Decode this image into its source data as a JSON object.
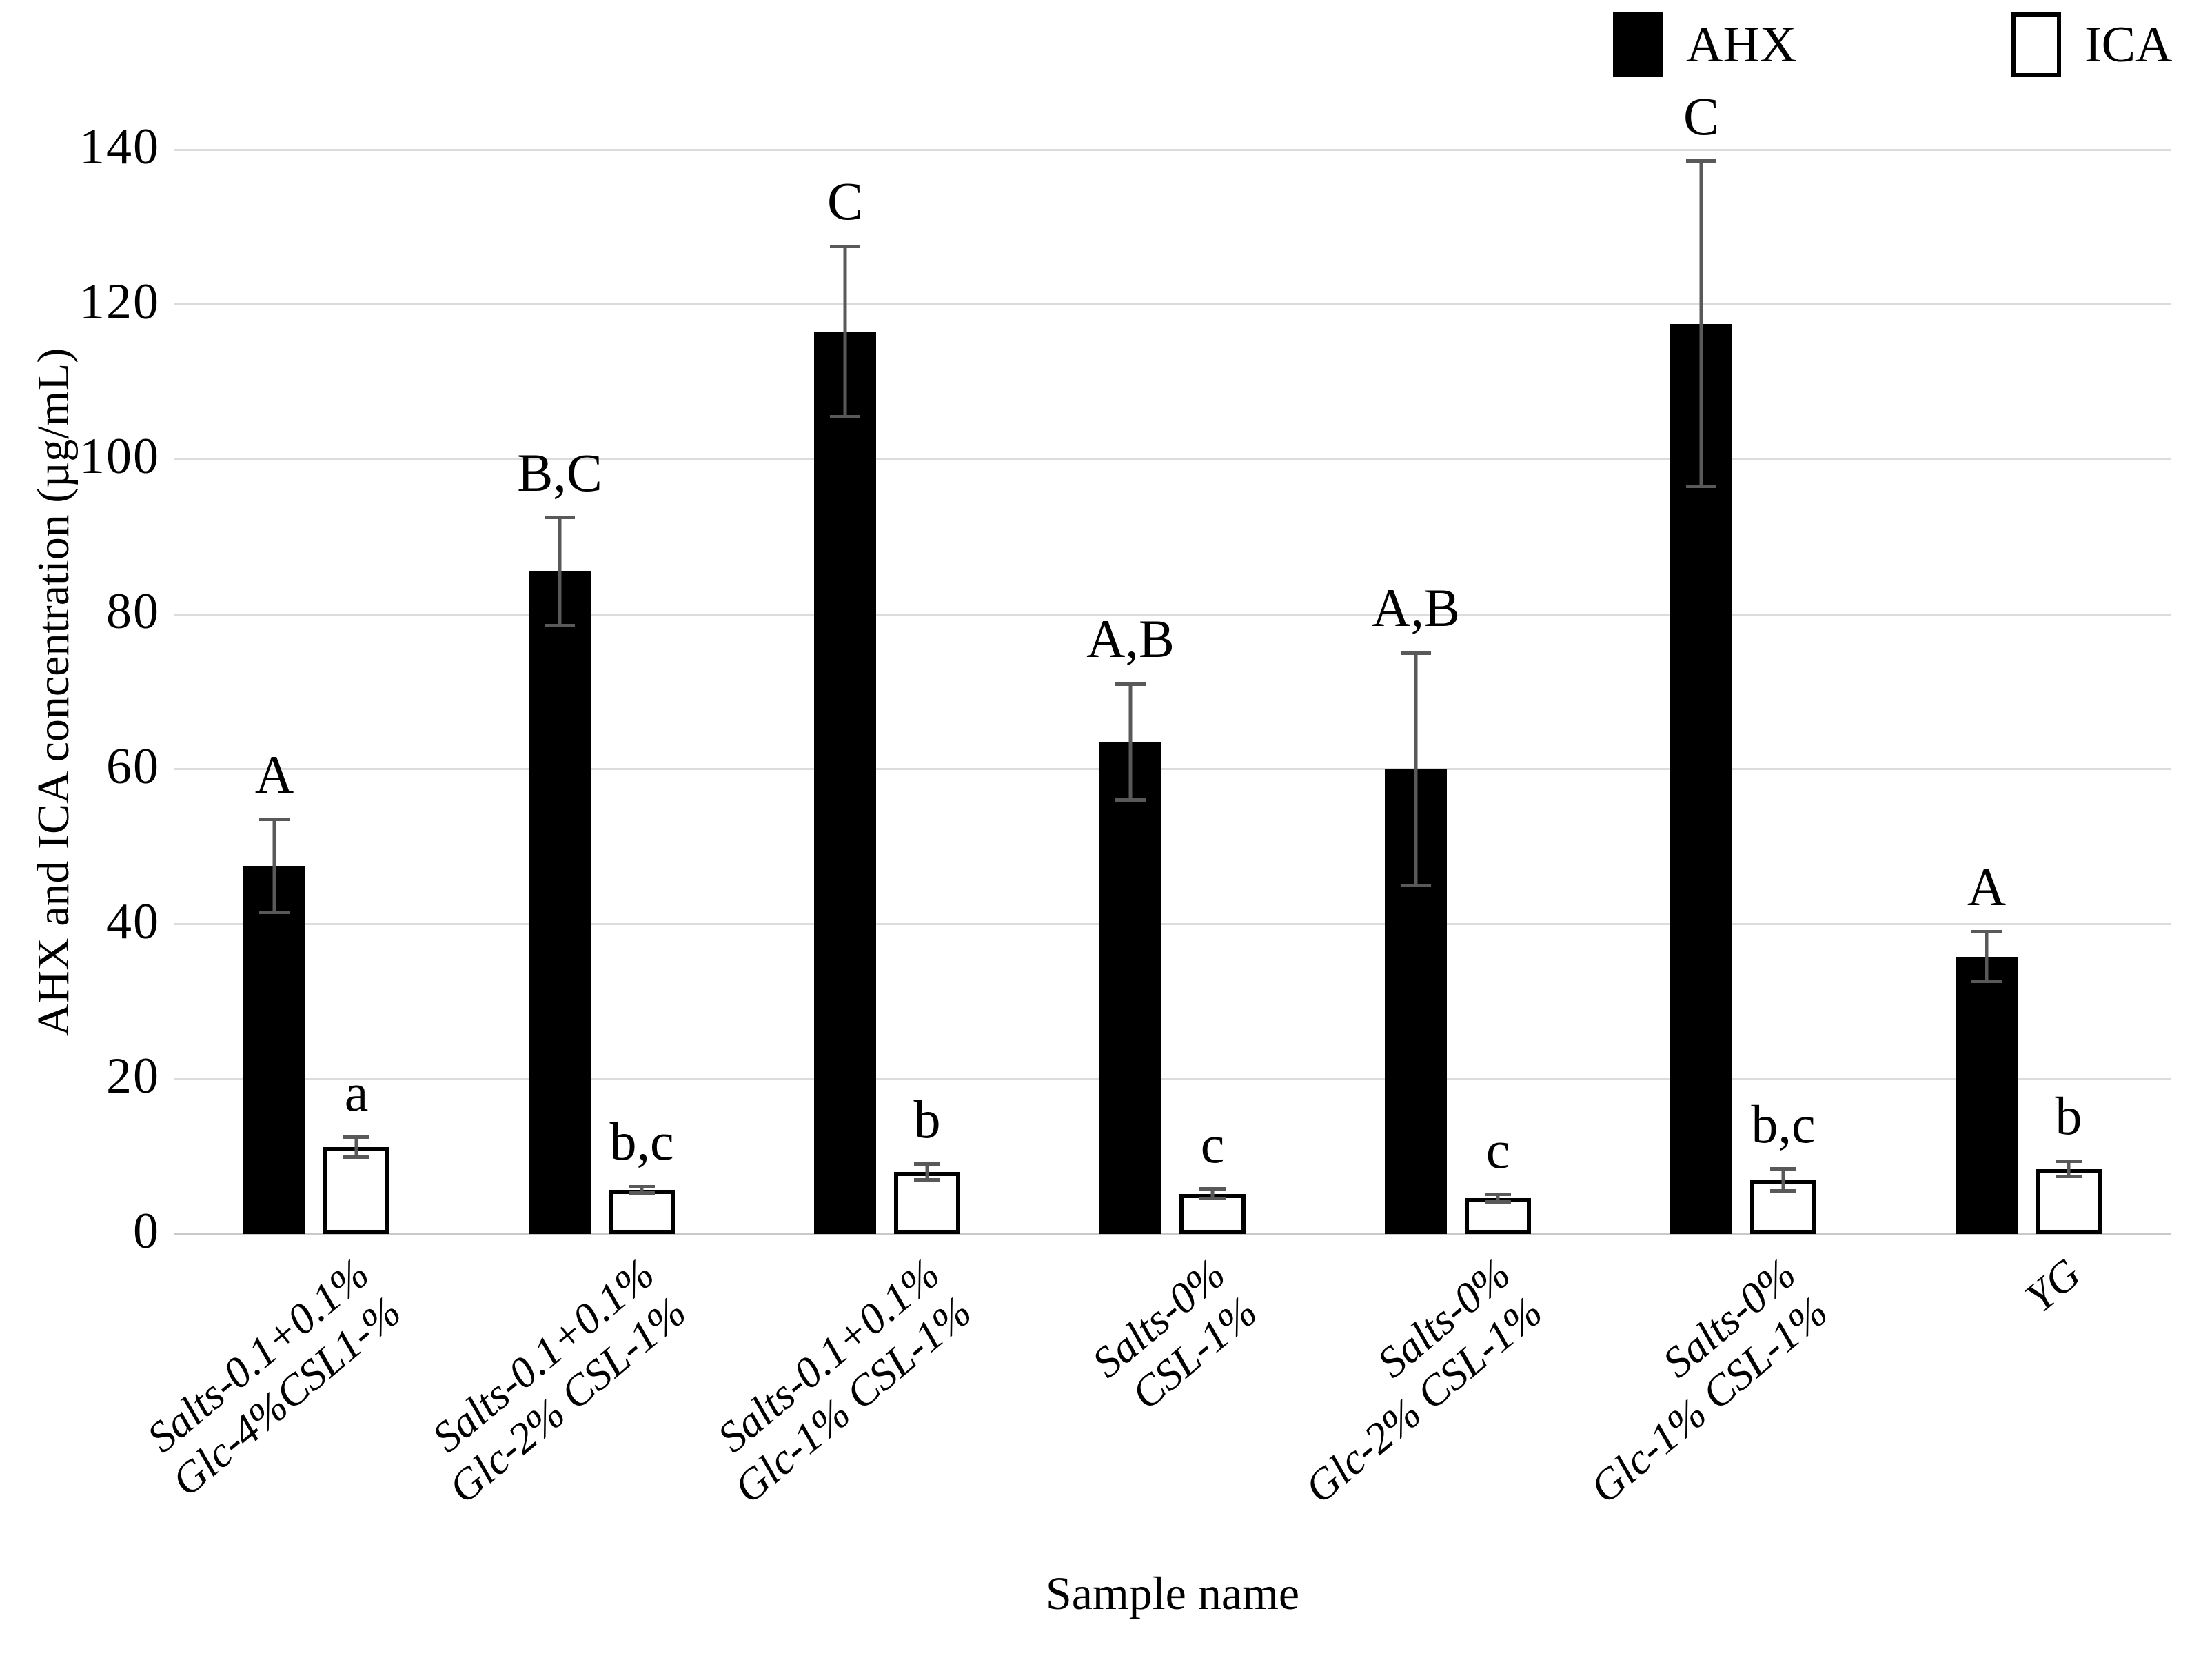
{
  "figure": {
    "background": "#ffffff",
    "grid_color": "#dcdcdc",
    "error_bar_color": "#595959"
  },
  "legend": {
    "position": "top-right",
    "entries": [
      {
        "label": "AHX",
        "fill": "#000000",
        "marker": "filled-square"
      },
      {
        "label": "ICA",
        "fill": "#ffffff",
        "marker": "open-square"
      }
    ]
  },
  "y_axis": {
    "title": "AHX and ICA concentration (µg/mL)",
    "ticks": [
      0,
      20,
      40,
      60,
      80,
      100,
      120,
      140
    ]
  },
  "x_axis": {
    "title": "Sample name"
  },
  "chart_data": {
    "type": "bar",
    "title": "",
    "xlabel": "Sample name",
    "ylabel": "AHX and ICA concentration (µg/mL)",
    "ylim": [
      0,
      140
    ],
    "ytick_step": 20,
    "grid": true,
    "legend_position": "top-right",
    "categories": [
      "Salts-0.1+0.1%\nGlc-4%CSL1-%",
      "Salts-0.1+0.1%\nGlc-2% CSL-1%",
      "Salts-0.1+0.1%\nGlc-1% CSL-1%",
      "Salts-0%\nCSL-1%",
      "Salts-0%\nGlc-2% CSL-1%",
      "Salts-0%\nGlc-1% CSL-1%",
      "YG"
    ],
    "series": [
      {
        "name": "AHX",
        "color": "#000000",
        "values": [
          47.5,
          85.5,
          116.5,
          63.5,
          60.0,
          117.5,
          35.8
        ],
        "errors": [
          6.0,
          7.0,
          11.0,
          7.5,
          15.0,
          21.0,
          3.2
        ],
        "sig_letters": [
          "A",
          "B,C",
          "C",
          "A,B",
          "A,B",
          "C",
          "A"
        ]
      },
      {
        "name": "ICA",
        "color": "#ffffff",
        "values": [
          11.2,
          5.7,
          8.0,
          5.2,
          4.6,
          7.0,
          8.4
        ],
        "errors": [
          1.3,
          0.4,
          1.0,
          0.6,
          0.5,
          1.4,
          1.0
        ],
        "sig_letters": [
          "a",
          "b,c",
          "b",
          "c",
          "c",
          "b,c",
          "b"
        ]
      }
    ]
  }
}
